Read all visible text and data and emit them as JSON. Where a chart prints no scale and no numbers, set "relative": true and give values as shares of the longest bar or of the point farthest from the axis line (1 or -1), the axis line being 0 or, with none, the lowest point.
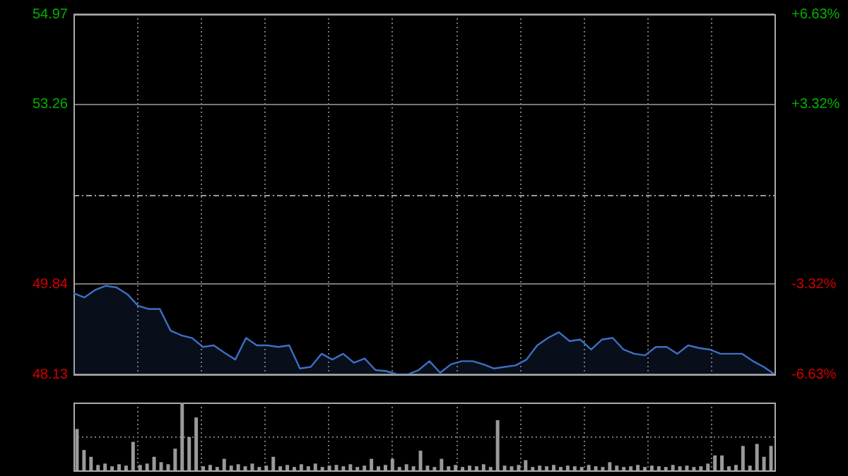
{
  "chart_data": [
    {
      "type": "area",
      "categories": [
        null,
        null,
        null,
        null,
        null,
        null,
        null,
        null,
        null,
        null,
        null,
        null,
        null,
        null,
        null,
        null,
        null,
        null,
        null,
        null,
        null,
        null,
        null,
        null,
        null,
        null,
        null,
        null,
        null,
        null,
        null,
        null,
        null,
        null,
        null,
        null,
        null,
        null,
        null,
        null,
        null,
        null,
        null,
        null,
        null,
        null,
        null,
        null,
        null,
        null,
        null,
        null,
        null,
        null,
        null,
        null,
        null,
        null,
        null,
        null,
        null,
        null,
        null,
        null,
        null,
        null
      ],
      "series": [
        {
          "color": "#3d6fc4",
          "values": [
            49.67,
            49.59,
            49.73,
            49.81,
            49.78,
            49.65,
            49.43,
            49.37,
            49.37,
            48.96,
            48.87,
            48.82,
            48.65,
            48.68,
            48.54,
            48.41,
            48.82,
            48.68,
            48.68,
            48.65,
            48.68,
            48.24,
            48.27,
            48.52,
            48.41,
            48.52,
            48.35,
            48.43,
            48.21,
            48.19,
            48.13,
            48.13,
            48.21,
            48.38,
            48.16,
            48.32,
            48.38,
            48.38,
            48.32,
            48.24,
            48.27,
            48.3,
            48.41,
            48.68,
            48.82,
            48.93,
            48.76,
            48.79,
            48.6,
            48.79,
            48.82,
            48.6,
            48.52,
            48.49,
            48.65,
            48.65,
            48.52,
            48.68,
            48.63,
            48.6,
            48.52,
            48.52,
            48.52,
            48.38,
            48.27,
            48.13
          ]
        }
      ],
      "ylim": [
        48.13,
        54.97
      ],
      "yticks": [
        48.13,
        49.84,
        53.26,
        54.97
      ],
      "y2lim": [
        -6.63,
        6.63
      ],
      "y2ticks": [
        {
          "value": -6.63,
          "label": "-6.63%"
        },
        {
          "value": -3.32,
          "label": "-3.32%"
        },
        {
          "value": 3.32,
          "label": "+3.32%"
        },
        {
          "value": 6.63,
          "label": "+6.63%"
        }
      ],
      "ref_lines": [
        {
          "axis": "y",
          "value": 51.55,
          "line_style": "dashed"
        }
      ],
      "tick_labels": "y",
      "grid": true,
      "legend": false
    },
    {
      "type": "bar",
      "relative": true,
      "color": "#9a9a9a",
      "grid": true,
      "legend": false,
      "categories": [
        null,
        null,
        null,
        null,
        null,
        null,
        null,
        null,
        null,
        null,
        null,
        null,
        null,
        null,
        null,
        null,
        null,
        null,
        null,
        null,
        null,
        null,
        null,
        null,
        null,
        null,
        null,
        null,
        null,
        null,
        null,
        null,
        null,
        null,
        null,
        null,
        null,
        null,
        null,
        null,
        null,
        null,
        null,
        null,
        null,
        null,
        null,
        null,
        null,
        null,
        null,
        null,
        null,
        null,
        null,
        null,
        null,
        null,
        null,
        null,
        null,
        null,
        null,
        null,
        null,
        null,
        null,
        null,
        null,
        null,
        null,
        null,
        null,
        null,
        null,
        null,
        null,
        null,
        null,
        null,
        null,
        null,
        null,
        null,
        null,
        null,
        null,
        null,
        null,
        null,
        null,
        null,
        null,
        null,
        null,
        null,
        null,
        null,
        null,
        null
      ],
      "values": [
        0.61,
        0.3,
        0.2,
        0.08,
        0.1,
        0.06,
        0.09,
        0.07,
        0.42,
        0.08,
        0.1,
        0.2,
        0.12,
        0.09,
        0.32,
        1.0,
        0.49,
        0.78,
        0.06,
        0.08,
        0.05,
        0.17,
        0.07,
        0.09,
        0.06,
        0.1,
        0.05,
        0.07,
        0.2,
        0.06,
        0.08,
        0.05,
        0.09,
        0.06,
        0.1,
        0.05,
        0.07,
        0.08,
        0.06,
        0.09,
        0.05,
        0.07,
        0.17,
        0.06,
        0.08,
        0.17,
        0.05,
        0.09,
        0.06,
        0.29,
        0.07,
        0.05,
        0.17,
        0.06,
        0.08,
        0.05,
        0.07,
        0.06,
        0.09,
        0.05,
        0.74,
        0.07,
        0.06,
        0.08,
        0.15,
        0.05,
        0.07,
        0.06,
        0.08,
        0.05,
        0.07,
        0.06,
        0.05,
        0.08,
        0.06,
        0.05,
        0.12,
        0.07,
        0.05,
        0.06,
        0.08,
        0.05,
        0.07,
        0.06,
        0.05,
        0.08,
        0.06,
        0.07,
        0.05,
        0.06,
        0.1,
        0.22,
        0.22,
        0.06,
        0.08,
        0.36,
        0.07,
        0.39,
        0.2,
        0.36
      ]
    }
  ]
}
